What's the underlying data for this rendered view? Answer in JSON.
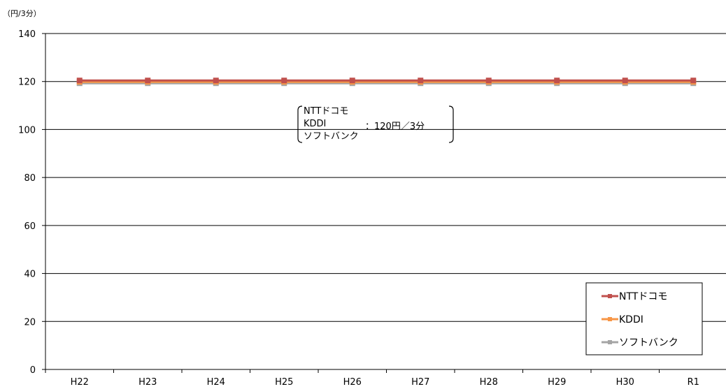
{
  "chart_data": {
    "type": "line",
    "unit_label": "（円/3分）",
    "categories": [
      "H22",
      "H23",
      "H24",
      "H25",
      "H26",
      "H27",
      "H28",
      "H29",
      "H30",
      "R1"
    ],
    "ylim": [
      0,
      140
    ],
    "yticks": [
      0,
      20,
      40,
      60,
      80,
      100,
      120,
      140
    ],
    "grid": true,
    "legend_position": "bottom-right",
    "series": [
      {
        "name": "NTTドコモ",
        "color": "#c0504d",
        "values": [
          120,
          120,
          120,
          120,
          120,
          120,
          120,
          120,
          120,
          120
        ]
      },
      {
        "name": "KDDI",
        "color": "#f79646",
        "values": [
          120,
          120,
          120,
          120,
          120,
          120,
          120,
          120,
          120,
          120
        ]
      },
      {
        "name": "ソフトバンク",
        "color": "#a5a5a5",
        "values": [
          120,
          120,
          120,
          120,
          120,
          120,
          120,
          120,
          120,
          120
        ]
      }
    ],
    "annotation": {
      "lines": [
        "NTTドコモ",
        "KDDI",
        "ソフトバンク"
      ],
      "value_text": "：120円／3分"
    }
  }
}
